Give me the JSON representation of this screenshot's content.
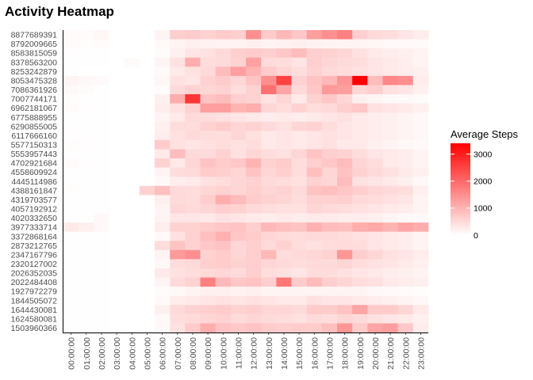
{
  "chart_data": {
    "type": "heatmap",
    "title": "Activity Heatmap",
    "x": [
      "00:00:00",
      "01:00:00",
      "02:00:00",
      "03:00:00",
      "04:00:00",
      "05:00:00",
      "06:00:00",
      "07:00:00",
      "08:00:00",
      "09:00:00",
      "10:00:00",
      "11:00:00",
      "12:00:00",
      "13:00:00",
      "14:00:00",
      "15:00:00",
      "16:00:00",
      "17:00:00",
      "18:00:00",
      "19:00:00",
      "20:00:00",
      "21:00:00",
      "22:00:00",
      "23:00:00"
    ],
    "y": [
      "8877689391",
      "8792009665",
      "8583815059",
      "8378563200",
      "8253242879",
      "8053475328",
      "7086361926",
      "7007744171",
      "6962181067",
      "6775888955",
      "6290855005",
      "6117666160",
      "5577150313",
      "5553957443",
      "4702921684",
      "4558609924",
      "4445114986",
      "4388161847",
      "4319703577",
      "4057192912",
      "4020332650",
      "3977333714",
      "3372868164",
      "2873212765",
      "2347167796",
      "2320127002",
      "2026352035",
      "2022484408",
      "1927972279",
      "1844505072",
      "1644430081",
      "1624580081",
      "1503960366"
    ],
    "values": [
      [
        60,
        60,
        120,
        0,
        0,
        0,
        150,
        650,
        700,
        600,
        700,
        650,
        1500,
        700,
        950,
        750,
        1300,
        1500,
        1700,
        650,
        500,
        450,
        350,
        250
      ],
      [
        50,
        40,
        60,
        0,
        0,
        0,
        80,
        150,
        200,
        180,
        150,
        160,
        200,
        150,
        180,
        200,
        180,
        150,
        150,
        150,
        120,
        100,
        80,
        70
      ],
      [
        30,
        20,
        15,
        0,
        0,
        0,
        50,
        200,
        350,
        400,
        500,
        650,
        700,
        650,
        750,
        900,
        650,
        600,
        550,
        400,
        300,
        250,
        200,
        150
      ],
      [
        20,
        10,
        10,
        0,
        80,
        0,
        150,
        400,
        1100,
        450,
        500,
        600,
        1250,
        500,
        450,
        350,
        650,
        550,
        500,
        450,
        350,
        300,
        250,
        150
      ],
      [
        10,
        0,
        0,
        0,
        0,
        0,
        80,
        300,
        400,
        500,
        900,
        1300,
        1000,
        700,
        550,
        450,
        600,
        500,
        450,
        400,
        350,
        300,
        250,
        200
      ],
      [
        150,
        100,
        80,
        0,
        0,
        0,
        120,
        400,
        350,
        600,
        700,
        550,
        800,
        1500,
        2500,
        600,
        800,
        950,
        1400,
        3400,
        900,
        1600,
        1500,
        250
      ],
      [
        100,
        50,
        20,
        0,
        0,
        0,
        50,
        500,
        600,
        550,
        600,
        450,
        600,
        1900,
        1200,
        500,
        750,
        1350,
        1300,
        550,
        650,
        400,
        350,
        200
      ],
      [
        40,
        20,
        10,
        0,
        0,
        0,
        200,
        1100,
        2700,
        800,
        900,
        650,
        600,
        400,
        550,
        300,
        600,
        750,
        550,
        200,
        150,
        100,
        80,
        60
      ],
      [
        50,
        30,
        20,
        0,
        0,
        0,
        250,
        400,
        600,
        1300,
        1300,
        1000,
        1100,
        550,
        450,
        600,
        450,
        500,
        650,
        750,
        400,
        350,
        300,
        200
      ],
      [
        20,
        10,
        10,
        0,
        0,
        0,
        150,
        300,
        500,
        450,
        400,
        350,
        300,
        250,
        300,
        250,
        300,
        350,
        400,
        300,
        250,
        200,
        150,
        100
      ],
      [
        20,
        10,
        10,
        0,
        0,
        0,
        200,
        450,
        450,
        600,
        700,
        550,
        600,
        500,
        400,
        550,
        600,
        450,
        350,
        300,
        250,
        200,
        150,
        100
      ],
      [
        30,
        20,
        10,
        0,
        0,
        0,
        250,
        400,
        500,
        450,
        450,
        550,
        400,
        300,
        350,
        300,
        350,
        400,
        350,
        300,
        250,
        200,
        150,
        100
      ],
      [
        40,
        30,
        10,
        0,
        0,
        0,
        700,
        400,
        350,
        400,
        450,
        400,
        450,
        300,
        350,
        300,
        350,
        400,
        300,
        300,
        200,
        150,
        100,
        80
      ],
      [
        30,
        20,
        10,
        0,
        0,
        0,
        300,
        900,
        500,
        500,
        600,
        400,
        550,
        450,
        400,
        550,
        800,
        650,
        600,
        450,
        350,
        300,
        250,
        150
      ],
      [
        50,
        30,
        10,
        0,
        0,
        0,
        600,
        300,
        550,
        800,
        700,
        750,
        1000,
        600,
        700,
        450,
        650,
        750,
        900,
        550,
        450,
        300,
        250,
        150
      ],
      [
        20,
        10,
        10,
        0,
        0,
        0,
        150,
        450,
        500,
        700,
        650,
        550,
        800,
        550,
        650,
        450,
        850,
        550,
        800,
        600,
        500,
        400,
        300,
        200
      ],
      [
        20,
        10,
        10,
        0,
        0,
        0,
        100,
        250,
        300,
        400,
        450,
        550,
        600,
        500,
        450,
        400,
        600,
        550,
        900,
        400,
        350,
        300,
        200,
        100
      ],
      [
        40,
        20,
        10,
        0,
        0,
        600,
        850,
        500,
        450,
        550,
        600,
        550,
        650,
        550,
        600,
        500,
        800,
        850,
        750,
        650,
        550,
        500,
        450,
        200
      ],
      [
        20,
        10,
        10,
        0,
        0,
        0,
        200,
        500,
        450,
        650,
        1100,
        900,
        700,
        600,
        550,
        450,
        600,
        600,
        650,
        500,
        450,
        400,
        350,
        150
      ],
      [
        20,
        10,
        10,
        0,
        0,
        0,
        150,
        550,
        500,
        550,
        650,
        600,
        500,
        450,
        400,
        400,
        550,
        500,
        450,
        400,
        350,
        300,
        250,
        150
      ],
      [
        20,
        10,
        100,
        0,
        0,
        0,
        150,
        350,
        350,
        300,
        400,
        350,
        300,
        250,
        300,
        250,
        300,
        300,
        250,
        250,
        200,
        150,
        100,
        80
      ],
      [
        300,
        200,
        100,
        0,
        0,
        0,
        250,
        600,
        600,
        700,
        750,
        800,
        650,
        950,
        850,
        800,
        1050,
        900,
        850,
        1100,
        1150,
        1000,
        1200,
        1100
      ],
      [
        20,
        10,
        10,
        0,
        0,
        0,
        100,
        400,
        600,
        850,
        1050,
        750,
        700,
        550,
        500,
        450,
        500,
        500,
        450,
        400,
        350,
        300,
        250,
        150
      ],
      [
        20,
        10,
        10,
        0,
        0,
        0,
        450,
        800,
        600,
        750,
        800,
        550,
        650,
        500,
        600,
        450,
        400,
        450,
        500,
        450,
        350,
        300,
        250,
        150
      ],
      [
        20,
        10,
        10,
        0,
        0,
        0,
        150,
        1350,
        1500,
        600,
        700,
        550,
        650,
        950,
        450,
        500,
        550,
        600,
        1400,
        650,
        550,
        400,
        350,
        250
      ],
      [
        20,
        10,
        10,
        0,
        0,
        0,
        100,
        450,
        500,
        650,
        700,
        600,
        650,
        550,
        500,
        450,
        500,
        500,
        550,
        450,
        400,
        350,
        300,
        200
      ],
      [
        20,
        10,
        10,
        0,
        0,
        0,
        300,
        400,
        450,
        500,
        550,
        500,
        650,
        450,
        400,
        350,
        450,
        450,
        400,
        350,
        300,
        250,
        200,
        150
      ],
      [
        20,
        10,
        10,
        0,
        0,
        0,
        150,
        500,
        600,
        1700,
        950,
        750,
        800,
        650,
        1800,
        700,
        900,
        650,
        550,
        450,
        400,
        300,
        250,
        200
      ],
      [
        20,
        10,
        10,
        0,
        0,
        0,
        50,
        100,
        150,
        200,
        200,
        180,
        200,
        150,
        150,
        150,
        150,
        150,
        150,
        150,
        100,
        80,
        60,
        40
      ],
      [
        20,
        10,
        10,
        0,
        0,
        0,
        80,
        250,
        300,
        350,
        400,
        350,
        400,
        350,
        300,
        300,
        400,
        350,
        350,
        300,
        250,
        200,
        150,
        100
      ],
      [
        20,
        10,
        10,
        0,
        0,
        0,
        200,
        500,
        600,
        650,
        700,
        600,
        650,
        550,
        550,
        500,
        700,
        700,
        800,
        1200,
        700,
        700,
        550,
        300
      ],
      [
        20,
        10,
        10,
        0,
        0,
        0,
        100,
        450,
        500,
        550,
        600,
        500,
        550,
        500,
        450,
        400,
        500,
        450,
        550,
        500,
        400,
        350,
        300,
        200
      ],
      [
        20,
        10,
        10,
        0,
        0,
        0,
        100,
        400,
        700,
        1100,
        800,
        750,
        800,
        700,
        650,
        700,
        700,
        850,
        1400,
        700,
        1200,
        1300,
        750,
        250
      ]
    ],
    "xlabel": "",
    "ylabel": "",
    "legend": {
      "title": "Average Steps",
      "ticks": [
        0,
        1000,
        2000,
        3000
      ],
      "range": [
        0,
        3400
      ],
      "low_color": "#ffffff",
      "high_color": "#ff0000",
      "placement": "right"
    },
    "grid": false
  }
}
